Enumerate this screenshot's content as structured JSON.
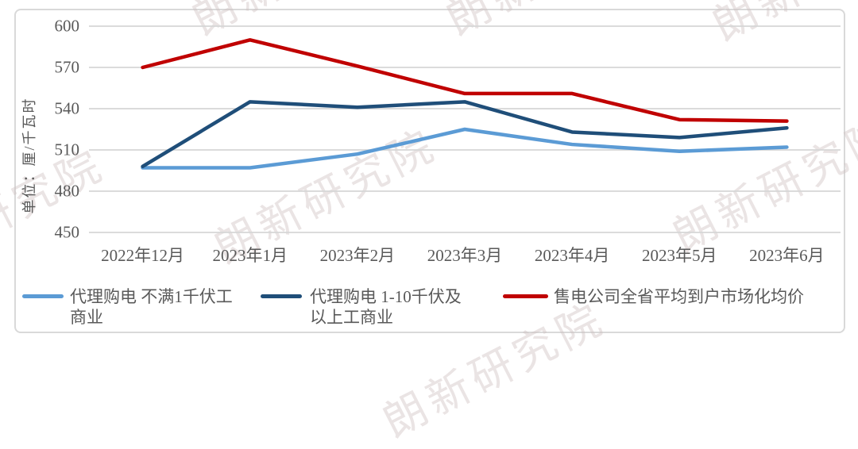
{
  "chart_data": {
    "type": "line",
    "title": "",
    "ylabel": "单位：厘/千瓦时",
    "categories": [
      "2022年12月",
      "2023年1月",
      "2023年2月",
      "2023年3月",
      "2023年4月",
      "2023年5月",
      "2023年6月"
    ],
    "series": [
      {
        "name": "代理购电 不满1千伏工商业",
        "color": "#5B9BD5",
        "values": [
          497,
          497,
          507,
          525,
          514,
          509,
          512
        ]
      },
      {
        "name": "代理购电 1-10千伏及以上工商业",
        "color": "#1F4E79",
        "values": [
          498,
          545,
          541,
          545,
          523,
          519,
          526
        ]
      },
      {
        "name": "售电公司全省平均到户市场化均价",
        "color": "#C00000",
        "values": [
          570,
          590,
          571,
          551,
          551,
          532,
          531
        ]
      }
    ],
    "y_ticks": [
      450,
      480,
      510,
      540,
      570,
      600
    ],
    "ylim": [
      450,
      600
    ],
    "grid": true,
    "legend_position": "bottom"
  },
  "axis": {
    "unit_label": "单位：厘/千瓦时"
  },
  "legend": {
    "items": [
      {
        "lines": [
          "代理购电 不满1千伏工",
          "商业"
        ],
        "color": "#5B9BD5"
      },
      {
        "lines": [
          "代理购电 1-10千伏及",
          "以上工商业"
        ],
        "color": "#1F4E79"
      },
      {
        "lines": [
          "售电公司全省平均到户市场化均价"
        ],
        "color": "#C00000"
      }
    ]
  },
  "watermark": {
    "text": "朗新研究院"
  },
  "colors": {
    "gridline": "#D6D6D6",
    "border": "#D9D9D9",
    "axis_text": "#595959"
  }
}
